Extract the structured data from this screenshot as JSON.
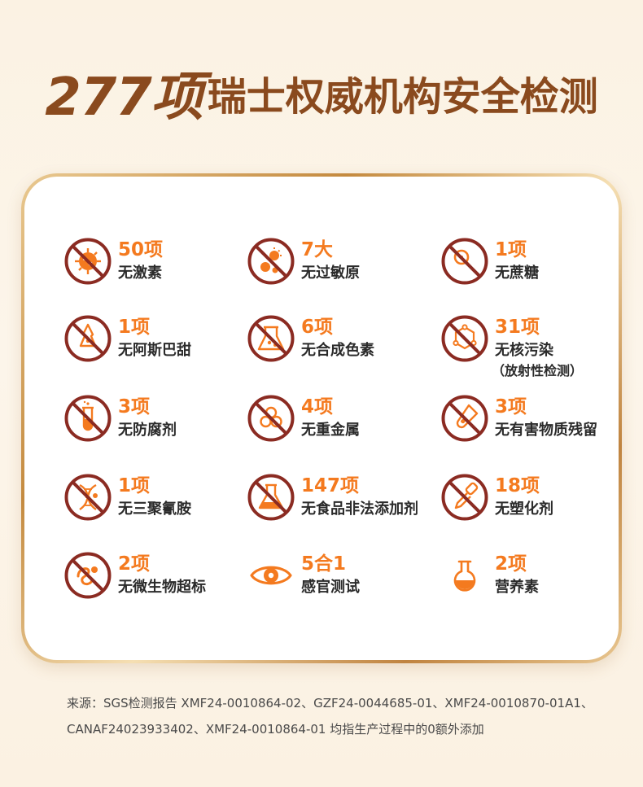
{
  "headline": {
    "number": "277项",
    "text": "瑞士权威机构安全检测"
  },
  "colors": {
    "accent": "#f47a1f",
    "prohibit": "#8b2b22",
    "headline": "#8a4a1e"
  },
  "items": [
    {
      "num": "50项",
      "label": "无激素",
      "icon": "virus-prohibited-icon"
    },
    {
      "num": "7大",
      "label": "无过敏原",
      "icon": "allergen-prohibited-icon"
    },
    {
      "num": "1项",
      "label": "无蔗糖",
      "icon": "sugar-prohibited-icon"
    },
    {
      "num": "1项",
      "label": "无阿斯巴甜",
      "icon": "sweetener-prohibited-icon"
    },
    {
      "num": "6项",
      "label": "无合成色素",
      "icon": "pigment-prohibited-icon"
    },
    {
      "num": "31项",
      "label": "无核污染",
      "sub": "（放射性检测）",
      "icon": "molecule-prohibited-icon"
    },
    {
      "num": "3项",
      "label": "无防腐剂",
      "icon": "test-tube-prohibited-icon"
    },
    {
      "num": "4项",
      "label": "无重金属",
      "icon": "biohazard-prohibited-icon"
    },
    {
      "num": "3项",
      "label": "无有害物质残留",
      "icon": "tube-residue-prohibited-icon"
    },
    {
      "num": "1项",
      "label": "无三聚氰胺",
      "icon": "dna-prohibited-icon"
    },
    {
      "num": "147项",
      "label": "无食品非法添加剂",
      "icon": "flask-prohibited-icon"
    },
    {
      "num": "18项",
      "label": "无塑化剂",
      "icon": "dropper-prohibited-icon"
    },
    {
      "num": "2项",
      "label": "无微生物超标",
      "icon": "microbe-prohibited-icon"
    },
    {
      "num": "5合1",
      "label": "感官测试",
      "icon": "eye-icon"
    },
    {
      "num": "2项",
      "label": "营养素",
      "icon": "round-flask-icon"
    }
  ],
  "source": {
    "line1": "来源：SGS检测报告 XMF24-0010864-02、GZF24-0044685-01、XMF24-0010870-01A1、",
    "line2": "CANAF24023933402、XMF24-0010864-01 均指生产过程中的0额外添加"
  }
}
